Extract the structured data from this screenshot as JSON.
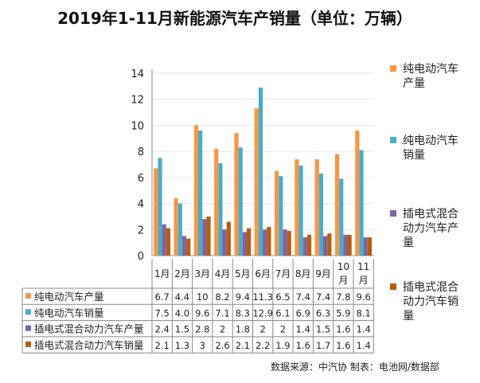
{
  "chart_data": {
    "type": "bar",
    "title": "2019年1-11月新能源汽车产销量（单位：万辆）",
    "categories": [
      "1月",
      "2月",
      "3月",
      "4月",
      "5月",
      "6月",
      "7月",
      "8月",
      "9月",
      "10月",
      "11月"
    ],
    "ylim": [
      0,
      14
    ],
    "yticks": [
      0,
      2,
      4,
      6,
      8,
      10,
      12,
      14
    ],
    "grid": true,
    "legend_position": "right",
    "series": [
      {
        "name": "纯电动汽车产量",
        "color": "#F79646",
        "values": [
          6.7,
          4.4,
          10,
          8.2,
          9.4,
          11.3,
          6.5,
          7.4,
          7.4,
          7.8,
          9.6
        ],
        "labels": [
          "6.7",
          "4.4",
          "10",
          "8.2",
          "9.4",
          "11.3",
          "6.5",
          "7.4",
          "7.4",
          "7.8",
          "9.6"
        ]
      },
      {
        "name": "纯电动汽车销量",
        "color": "#4BACC6",
        "values": [
          7.5,
          4.0,
          9.6,
          7.1,
          8.3,
          12.9,
          6.1,
          6.9,
          6.3,
          5.9,
          8.1
        ],
        "labels": [
          "7.5",
          "4.0",
          "9.6",
          "7.1",
          "8.3",
          "12.9",
          "6.1",
          "6.9",
          "6.3",
          "5.9",
          "8.1"
        ]
      },
      {
        "name": "插电式混合动力汽车产量",
        "color": "#8064A2",
        "values": [
          2.4,
          1.5,
          2.8,
          2,
          1.8,
          2,
          2,
          1.4,
          1.5,
          1.6,
          1.4
        ],
        "labels": [
          "2.4",
          "1.5",
          "2.8",
          "2",
          "1.8",
          "2",
          "2",
          "1.4",
          "1.5",
          "1.6",
          "1.4"
        ]
      },
      {
        "name": "插电式混合动力汽车销量",
        "color": "#B85C0E",
        "values": [
          2.1,
          1.3,
          3,
          2.6,
          2.1,
          2.2,
          1.9,
          1.6,
          1.7,
          1.6,
          1.4
        ],
        "labels": [
          "2.1",
          "1.3",
          "3",
          "2.6",
          "2.1",
          "2.2",
          "1.9",
          "1.6",
          "1.7",
          "1.6",
          "1.4"
        ]
      }
    ]
  },
  "legend": [
    {
      "line1": "纯电动汽车",
      "line2": "产量"
    },
    {
      "line1": "纯电动汽车",
      "line2": "销量"
    },
    {
      "line1": "插电式混合",
      "line2": "动力汽车产",
      "line3": "量"
    },
    {
      "line1": "插电式混合",
      "line2": "动力汽车销",
      "line3": "量"
    }
  ],
  "source": "数据来源：中汽协  制表：电池网/数据部"
}
